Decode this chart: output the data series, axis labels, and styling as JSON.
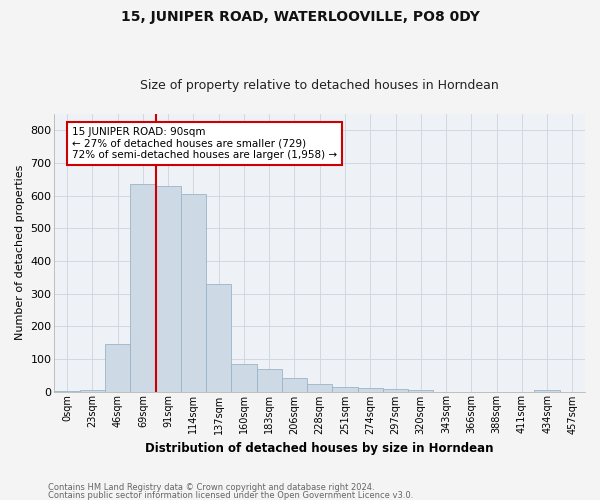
{
  "title_line1": "15, JUNIPER ROAD, WATERLOOVILLE, PO8 0DY",
  "title_line2": "Size of property relative to detached houses in Horndean",
  "xlabel": "Distribution of detached houses by size in Horndean",
  "ylabel": "Number of detached properties",
  "bar_color": "#cdd9e5",
  "bar_edge_color": "#9ab4c8",
  "vline_color": "#cc0000",
  "annotation_text": "15 JUNIPER ROAD: 90sqm\n← 27% of detached houses are smaller (729)\n72% of semi-detached houses are larger (1,958) →",
  "annotation_box_color": "#ffffff",
  "annotation_box_edge": "#cc0000",
  "categories": [
    "0sqm",
    "23sqm",
    "46sqm",
    "69sqm",
    "91sqm",
    "114sqm",
    "137sqm",
    "160sqm",
    "183sqm",
    "206sqm",
    "228sqm",
    "251sqm",
    "274sqm",
    "297sqm",
    "320sqm",
    "343sqm",
    "366sqm",
    "388sqm",
    "411sqm",
    "434sqm",
    "457sqm"
  ],
  "bar_heights": [
    2,
    5,
    145,
    637,
    628,
    605,
    330,
    85,
    70,
    42,
    22,
    15,
    10,
    8,
    5,
    0,
    0,
    0,
    0,
    5,
    0
  ],
  "ylim": [
    0,
    850
  ],
  "yticks": [
    0,
    100,
    200,
    300,
    400,
    500,
    600,
    700,
    800
  ],
  "footnote1": "Contains HM Land Registry data © Crown copyright and database right 2024.",
  "footnote2": "Contains public sector information licensed under the Open Government Licence v3.0.",
  "grid_color": "#d0d8e4",
  "background_color": "#eef2f6",
  "fig_bg": "#f4f4f4"
}
